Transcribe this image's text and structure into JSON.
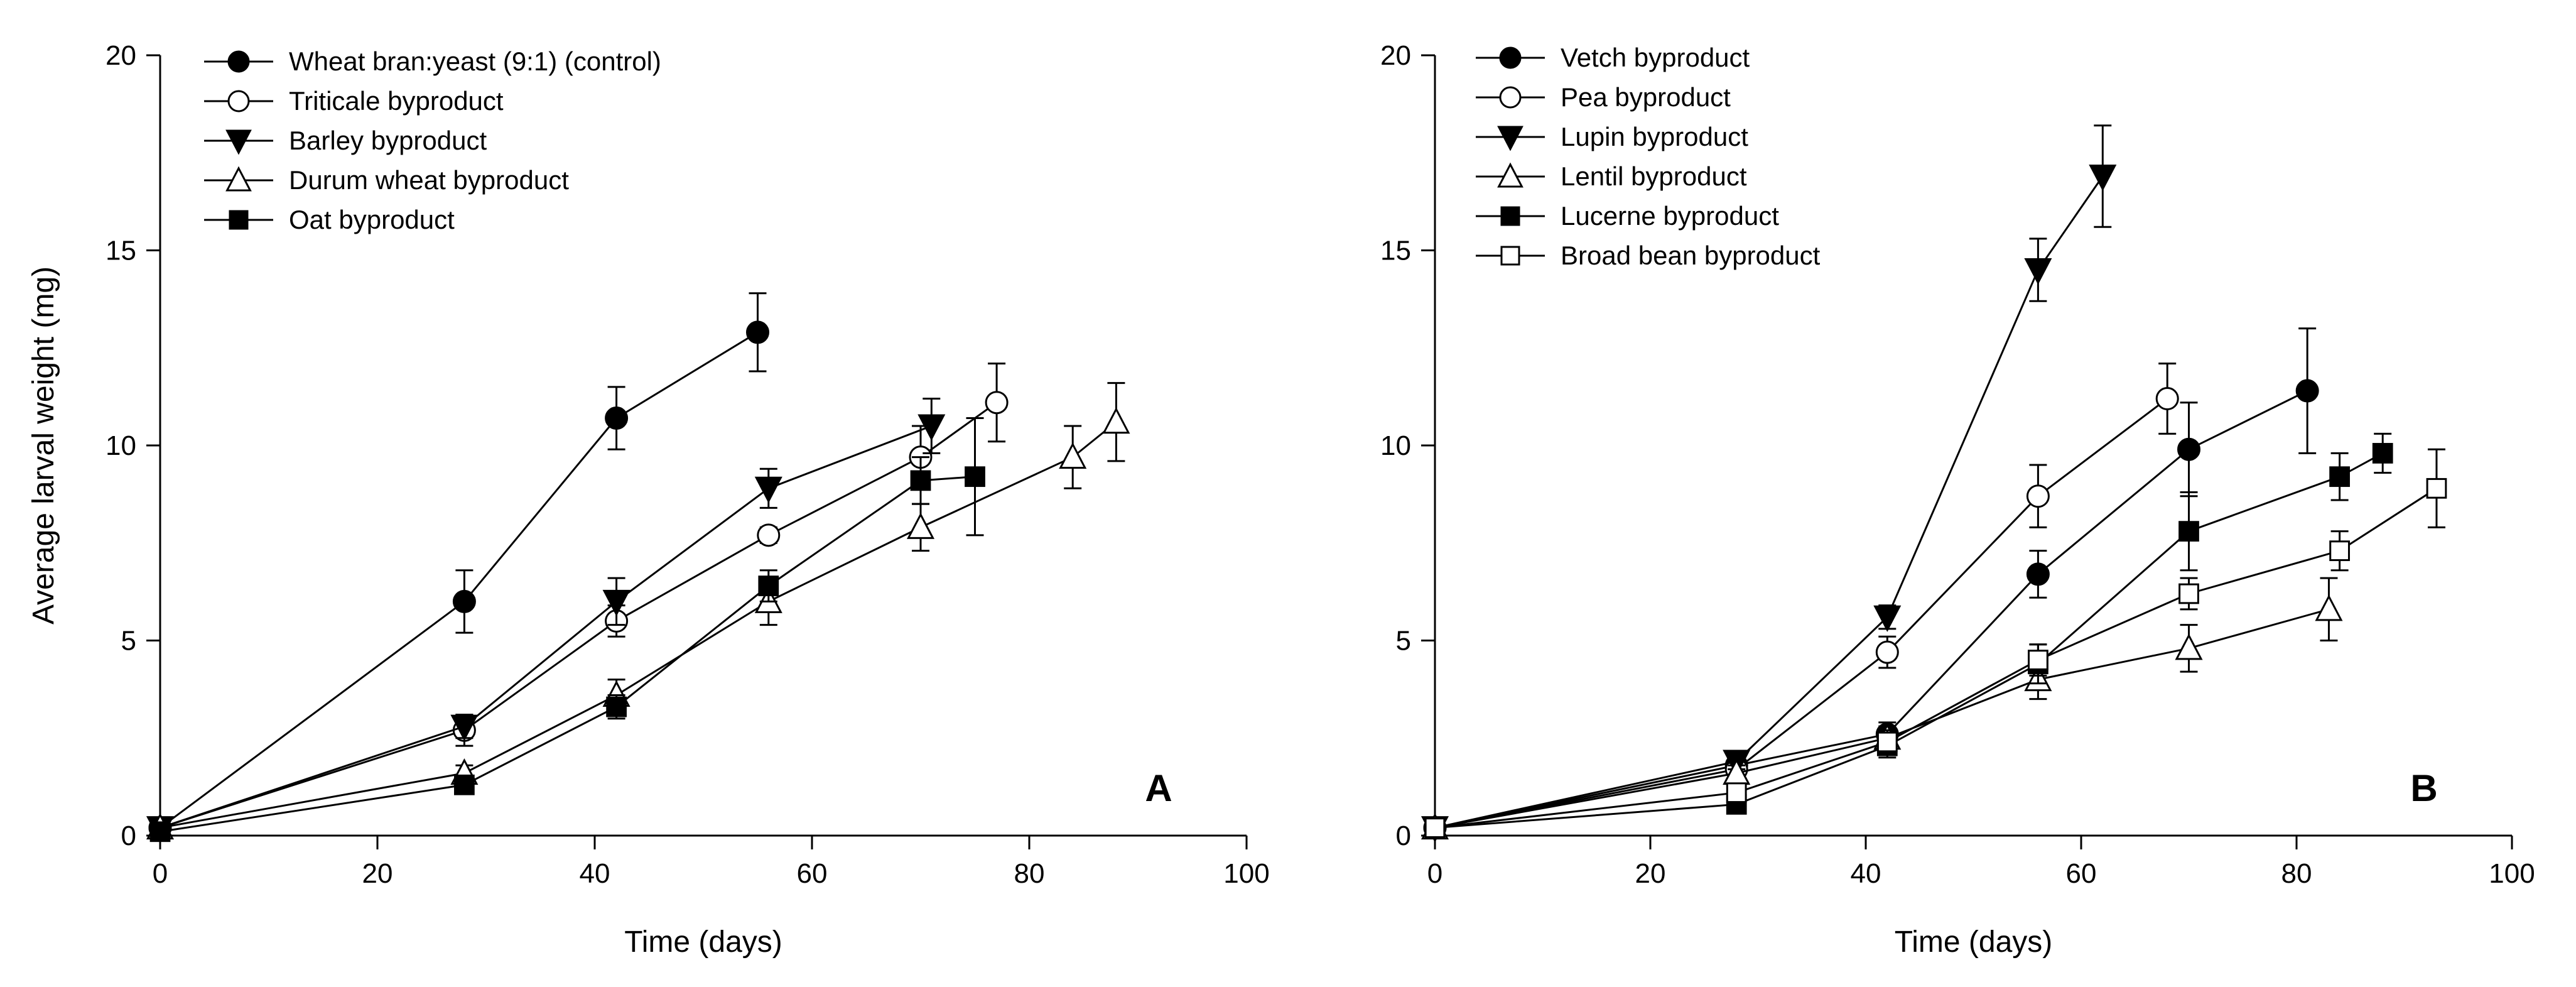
{
  "chart_data": [
    {
      "type": "line",
      "panel_label": "A",
      "xlabel": "Time (days)",
      "ylabel": "Average larval weight (mg)",
      "xlim": [
        0,
        100
      ],
      "ylim": [
        0,
        20
      ],
      "xticks": [
        0,
        20,
        40,
        60,
        80,
        100
      ],
      "yticks": [
        0,
        5,
        10,
        15,
        20
      ],
      "grid": false,
      "legend_position": "top-left",
      "series": [
        {
          "name": "Wheat bran:yeast (9:1) (control)",
          "marker": "circle-filled",
          "x": [
            0,
            28,
            42,
            55
          ],
          "y": [
            0.2,
            6.0,
            10.7,
            12.9
          ],
          "err": [
            0.1,
            0.8,
            0.8,
            1.0
          ]
        },
        {
          "name": "Triticale byproduct",
          "marker": "circle-open",
          "x": [
            0,
            28,
            42,
            56,
            70,
            77
          ],
          "y": [
            0.2,
            2.7,
            5.5,
            7.7,
            9.7,
            11.1
          ],
          "err": [
            0.1,
            0.4,
            0.4,
            0.2,
            0.8,
            1.0
          ]
        },
        {
          "name": "Barley byproduct",
          "marker": "triangle-down-filled",
          "x": [
            0,
            28,
            42,
            56,
            71
          ],
          "y": [
            0.2,
            2.8,
            6.0,
            8.9,
            10.5
          ],
          "err": [
            0.1,
            0.3,
            0.6,
            0.5,
            0.7
          ]
        },
        {
          "name": "Durum wheat byproduct",
          "marker": "triangle-up-open",
          "x": [
            0,
            28,
            42,
            56,
            70,
            84,
            88
          ],
          "y": [
            0.2,
            1.6,
            3.6,
            6.0,
            7.9,
            9.7,
            10.6
          ],
          "err": [
            0.1,
            0.2,
            0.4,
            0.6,
            0.6,
            0.8,
            1.0
          ]
        },
        {
          "name": "Oat byproduct",
          "marker": "square-filled",
          "x": [
            0,
            28,
            42,
            56,
            70,
            75
          ],
          "y": [
            0.1,
            1.3,
            3.3,
            6.4,
            9.1,
            9.2
          ],
          "err": [
            0.1,
            0.2,
            0.3,
            0.4,
            0.6,
            1.5
          ]
        }
      ]
    },
    {
      "type": "line",
      "panel_label": "B",
      "xlabel": "Time (days)",
      "ylabel": "",
      "xlim": [
        0,
        100
      ],
      "ylim": [
        0,
        20
      ],
      "xticks": [
        0,
        20,
        40,
        60,
        80,
        100
      ],
      "yticks": [
        0,
        5,
        10,
        15,
        20
      ],
      "grid": false,
      "legend_position": "top-left",
      "series": [
        {
          "name": "Vetch byproduct",
          "marker": "circle-filled",
          "x": [
            0,
            28,
            42,
            56,
            70,
            81
          ],
          "y": [
            0.2,
            1.8,
            2.6,
            6.7,
            9.9,
            11.4
          ],
          "err": [
            0.1,
            0.2,
            0.3,
            0.6,
            1.2,
            1.6
          ]
        },
        {
          "name": "Pea byproduct",
          "marker": "circle-open",
          "x": [
            0,
            28,
            42,
            56,
            68
          ],
          "y": [
            0.2,
            1.7,
            4.7,
            8.7,
            11.2
          ],
          "err": [
            0.1,
            0.2,
            0.4,
            0.8,
            0.9
          ]
        },
        {
          "name": "Lupin byproduct",
          "marker": "triangle-down-filled",
          "x": [
            0,
            28,
            42,
            56,
            62
          ],
          "y": [
            0.2,
            1.9,
            5.6,
            14.5,
            16.9
          ],
          "err": [
            0.1,
            0.2,
            0.3,
            0.8,
            1.3
          ]
        },
        {
          "name": "Lentil byproduct",
          "marker": "triangle-up-open",
          "x": [
            0,
            28,
            42,
            56,
            70,
            83
          ],
          "y": [
            0.2,
            1.6,
            2.5,
            4.0,
            4.8,
            5.8
          ],
          "err": [
            0.1,
            0.2,
            0.3,
            0.5,
            0.6,
            0.8
          ]
        },
        {
          "name": "Lucerne byproduct",
          "marker": "square-filled",
          "x": [
            0,
            28,
            42,
            56,
            70,
            84,
            88
          ],
          "y": [
            0.2,
            0.8,
            2.3,
            4.4,
            7.8,
            9.2,
            9.8
          ],
          "err": [
            0.1,
            0.2,
            0.3,
            0.5,
            1.0,
            0.6,
            0.5
          ]
        },
        {
          "name": "Broad bean byproduct",
          "marker": "square-open",
          "x": [
            0,
            28,
            42,
            56,
            70,
            84,
            93
          ],
          "y": [
            0.2,
            1.1,
            2.4,
            4.5,
            6.2,
            7.3,
            8.9
          ],
          "err": [
            0.1,
            0.2,
            0.3,
            0.4,
            0.4,
            0.5,
            1.0
          ]
        }
      ]
    }
  ]
}
